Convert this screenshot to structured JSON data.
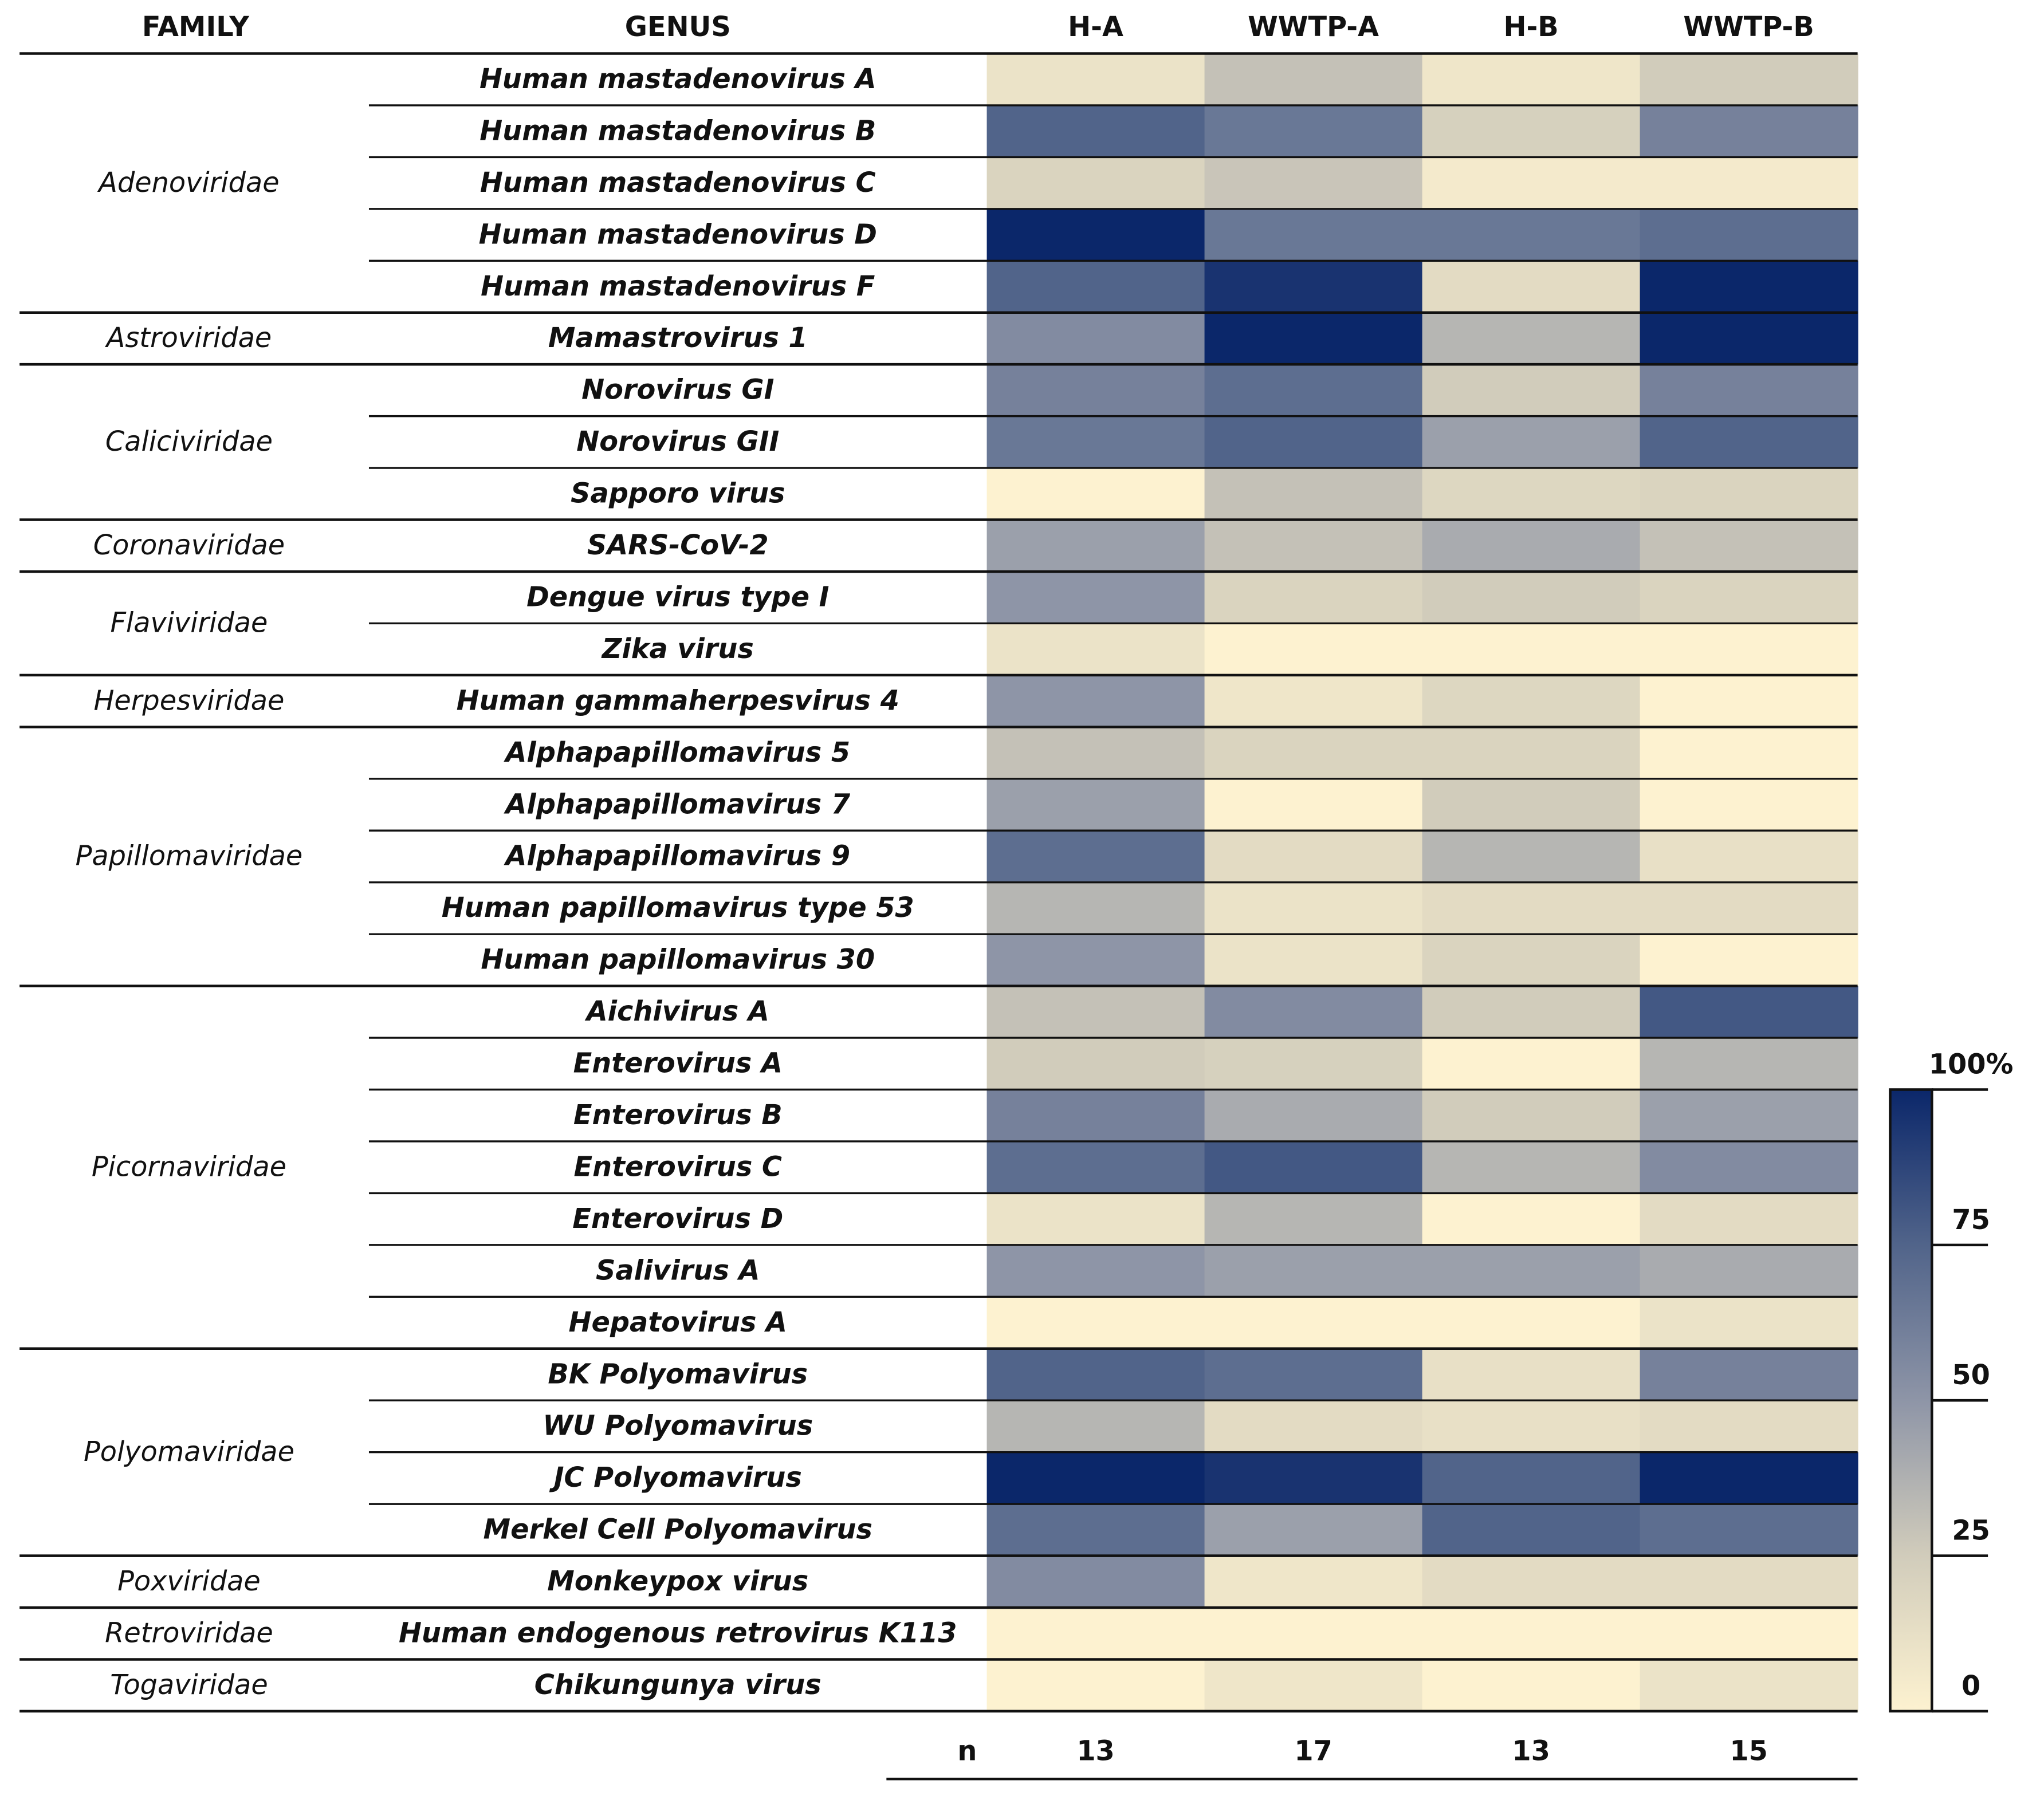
{
  "chart_data": {
    "type": "heatmap",
    "headers": {
      "family": "FAMILY",
      "genus": "GENUS"
    },
    "columns": [
      "H-A",
      "WWTP-A",
      "H-B",
      "WWTP-B"
    ],
    "families": [
      {
        "name": "Adenoviridae",
        "genera": [
          "Human mastadenovirus A",
          "Human mastadenovirus B",
          "Human mastadenovirus C",
          "Human mastadenovirus D",
          "Human mastadenovirus F"
        ],
        "values": [
          [
            10,
            30,
            8,
            25
          ],
          [
            75,
            65,
            22,
            60
          ],
          [
            20,
            28,
            5,
            5
          ],
          [
            100,
            65,
            65,
            70
          ],
          [
            75,
            95,
            15,
            100
          ]
        ]
      },
      {
        "name": "Astroviridae",
        "genera": [
          "Mamastrovirus 1"
        ],
        "values": [
          [
            55,
            100,
            35,
            100
          ]
        ]
      },
      {
        "name": "Caliciviridae",
        "genera": [
          "Norovirus GI",
          "Norovirus GII",
          "Sapporo virus"
        ],
        "values": [
          [
            60,
            70,
            25,
            60
          ],
          [
            65,
            75,
            45,
            75
          ],
          [
            0,
            30,
            18,
            20
          ]
        ]
      },
      {
        "name": "Coronaviridae",
        "genera": [
          "SARS-CoV-2"
        ],
        "values": [
          [
            45,
            30,
            40,
            30
          ]
        ]
      },
      {
        "name": "Flaviviridae",
        "genera": [
          "Dengue virus type I",
          "Zika virus"
        ],
        "values": [
          [
            50,
            20,
            25,
            20
          ],
          [
            10,
            0,
            0,
            0
          ]
        ]
      },
      {
        "name": "Herpesviridae",
        "genera": [
          "Human gammaherpesvirus 4"
        ],
        "values": [
          [
            50,
            8,
            18,
            0
          ]
        ]
      },
      {
        "name": "Papillomaviridae",
        "genera": [
          "Alphapapillomavirus 5",
          "Alphapapillomavirus 7",
          "Alphapapillomavirus 9",
          "Human papillomavirus type 53",
          "Human papillomavirus 30"
        ],
        "values": [
          [
            30,
            20,
            20,
            0
          ],
          [
            45,
            0,
            25,
            0
          ],
          [
            70,
            15,
            35,
            12
          ],
          [
            35,
            10,
            15,
            15
          ],
          [
            50,
            10,
            20,
            0
          ]
        ]
      },
      {
        "name": "Picornaviridae",
        "genera": [
          "Aichivirus A",
          "Enterovirus A",
          "Enterovirus B",
          "Enterovirus C",
          "Enterovirus D",
          "Salivirus A",
          "Hepatovirus A"
        ],
        "values": [
          [
            30,
            55,
            25,
            80
          ],
          [
            25,
            22,
            0,
            35
          ],
          [
            60,
            40,
            25,
            45
          ],
          [
            70,
            80,
            35,
            55
          ],
          [
            10,
            35,
            0,
            15
          ],
          [
            50,
            45,
            45,
            40
          ],
          [
            0,
            0,
            0,
            10
          ]
        ]
      },
      {
        "name": "Polyomaviridae",
        "genera": [
          "BK Polyomavirus",
          "WU Polyomavirus",
          "JC Polyomavirus",
          "Merkel Cell Polyomavirus"
        ],
        "values": [
          [
            75,
            70,
            12,
            60
          ],
          [
            35,
            15,
            12,
            15
          ],
          [
            100,
            95,
            75,
            100
          ],
          [
            70,
            45,
            75,
            70
          ]
        ]
      },
      {
        "name": "Poxviridae",
        "genera": [
          "Monkeypox virus"
        ],
        "values": [
          [
            55,
            8,
            15,
            15
          ]
        ]
      },
      {
        "name": "Retroviridae",
        "genera": [
          "Human endogenous retrovirus K113"
        ],
        "values": [
          [
            0,
            0,
            0,
            0
          ]
        ]
      },
      {
        "name": "Togaviridae",
        "genera": [
          "Chikungunya virus"
        ],
        "values": [
          [
            0,
            8,
            0,
            10
          ]
        ]
      }
    ],
    "n_label": "n",
    "n_values": [
      13,
      17,
      13,
      15
    ],
    "clim": [
      0,
      100
    ],
    "cticks": [
      0,
      25,
      50,
      75,
      {
        "value": 100,
        "label": "100%"
      }
    ],
    "colorscale": [
      "#fdf2d0",
      "#d1ccbb",
      "#8e95a7",
      "#51648a",
      "#0b276a"
    ]
  }
}
